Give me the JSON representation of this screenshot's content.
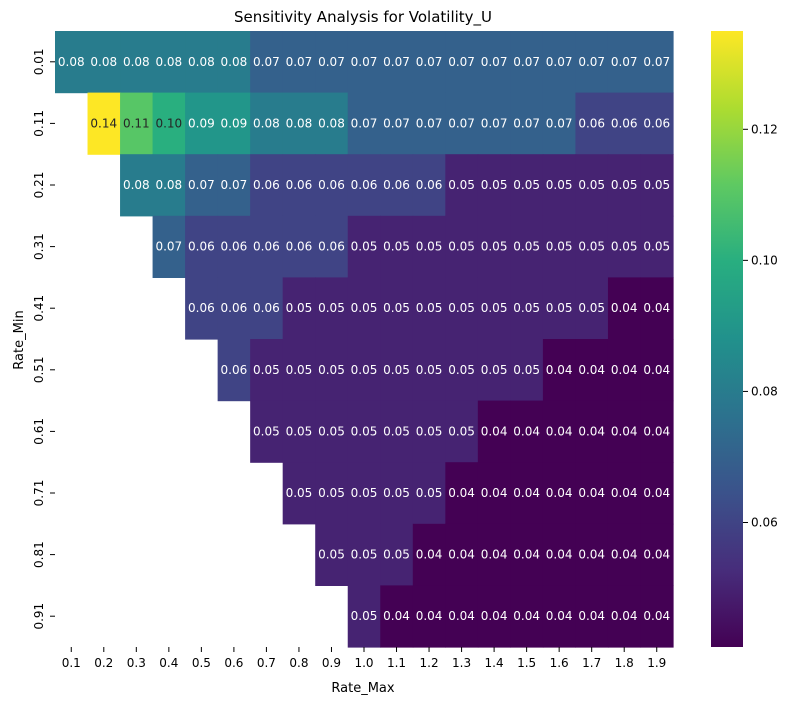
{
  "chart_data": {
    "type": "heatmap",
    "title": "Sensitivity Analysis for Volatility_U",
    "xlabel": "Rate_Max",
    "ylabel": "Rate_Min",
    "x_ticks": [
      "0.1",
      "0.2",
      "0.3",
      "0.4",
      "0.5",
      "0.6",
      "0.7",
      "0.8",
      "0.9",
      "1.0",
      "1.1",
      "1.2",
      "1.3",
      "1.4",
      "1.5",
      "1.6",
      "1.7",
      "1.8",
      "1.9"
    ],
    "y_ticks": [
      "0.01",
      "0.11",
      "0.21",
      "0.31",
      "0.41",
      "0.51",
      "0.61",
      "0.71",
      "0.81",
      "0.91"
    ],
    "values": [
      [
        0.08,
        0.08,
        0.08,
        0.08,
        0.08,
        0.08,
        0.07,
        0.07,
        0.07,
        0.07,
        0.07,
        0.07,
        0.07,
        0.07,
        0.07,
        0.07,
        0.07,
        0.07,
        0.07
      ],
      [
        null,
        0.14,
        0.11,
        0.1,
        0.09,
        0.09,
        0.08,
        0.08,
        0.08,
        0.07,
        0.07,
        0.07,
        0.07,
        0.07,
        0.07,
        0.07,
        0.06,
        0.06,
        0.06
      ],
      [
        null,
        null,
        0.08,
        0.08,
        0.07,
        0.07,
        0.06,
        0.06,
        0.06,
        0.06,
        0.06,
        0.06,
        0.05,
        0.05,
        0.05,
        0.05,
        0.05,
        0.05,
        0.05
      ],
      [
        null,
        null,
        null,
        0.07,
        0.06,
        0.06,
        0.06,
        0.06,
        0.06,
        0.05,
        0.05,
        0.05,
        0.05,
        0.05,
        0.05,
        0.05,
        0.05,
        0.05,
        0.05
      ],
      [
        null,
        null,
        null,
        null,
        0.06,
        0.06,
        0.06,
        0.05,
        0.05,
        0.05,
        0.05,
        0.05,
        0.05,
        0.05,
        0.05,
        0.05,
        0.05,
        0.04,
        0.04
      ],
      [
        null,
        null,
        null,
        null,
        null,
        0.06,
        0.05,
        0.05,
        0.05,
        0.05,
        0.05,
        0.05,
        0.05,
        0.05,
        0.05,
        0.04,
        0.04,
        0.04,
        0.04
      ],
      [
        null,
        null,
        null,
        null,
        null,
        null,
        0.05,
        0.05,
        0.05,
        0.05,
        0.05,
        0.05,
        0.05,
        0.04,
        0.04,
        0.04,
        0.04,
        0.04,
        0.04
      ],
      [
        null,
        null,
        null,
        null,
        null,
        null,
        null,
        0.05,
        0.05,
        0.05,
        0.05,
        0.05,
        0.04,
        0.04,
        0.04,
        0.04,
        0.04,
        0.04,
        0.04
      ],
      [
        null,
        null,
        null,
        null,
        null,
        null,
        null,
        null,
        0.05,
        0.05,
        0.05,
        0.04,
        0.04,
        0.04,
        0.04,
        0.04,
        0.04,
        0.04,
        0.04
      ],
      [
        null,
        null,
        null,
        null,
        null,
        null,
        null,
        null,
        null,
        0.05,
        0.04,
        0.04,
        0.04,
        0.04,
        0.04,
        0.04,
        0.04,
        0.04,
        0.04
      ]
    ],
    "colorbar": {
      "colormap": "viridis",
      "range": [
        0.041,
        0.135
      ],
      "ticks": [
        0.06,
        0.08,
        0.1,
        0.12
      ],
      "tick_labels": [
        "0.06",
        "0.08",
        "0.10",
        "0.12"
      ]
    }
  }
}
